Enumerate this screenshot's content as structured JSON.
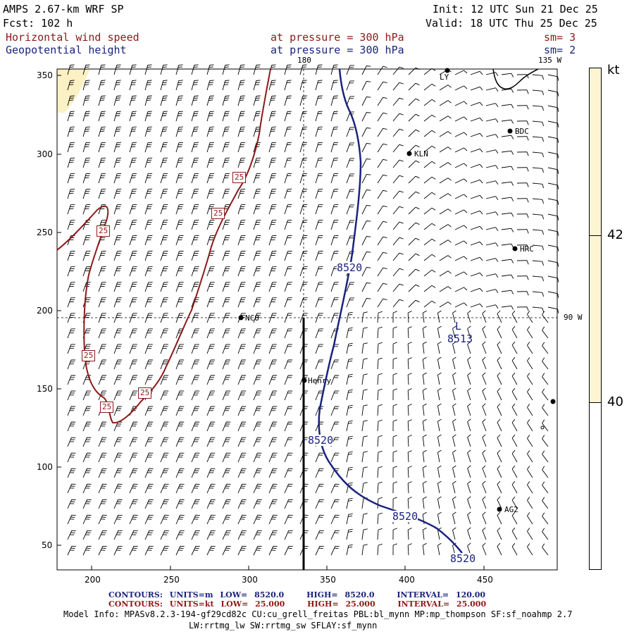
{
  "header": {
    "model": "AMPS 2.67-km WRF SP",
    "fcst": "Fcst:  102 h",
    "init": "Init: 12 UTC Sun 21 Dec 25",
    "valid": "Valid: 18 UTC Thu 25 Dec 25",
    "field1": "Horizontal wind speed",
    "field2": "Geopotential height",
    "pressure1": "at pressure =  300 hPa",
    "pressure2": "at pressure =  300 hPa",
    "sm1": "sm= 3",
    "sm2": "sm= 2"
  },
  "map": {
    "lon_labels": [
      "180",
      "135 W",
      "90 W"
    ],
    "x_ticks": [
      "200",
      "250",
      "300",
      "350",
      "400",
      "450"
    ],
    "y_ticks": [
      "350",
      "300",
      "250",
      "200",
      "150",
      "100",
      "50"
    ],
    "stations": [
      "LY",
      "BDC",
      "KLN",
      "HRC",
      "NCO",
      "Henry",
      "AG2"
    ],
    "height_contour_label": "8520",
    "low_label": "L",
    "low_value": "8513",
    "wind_contour_label": "25",
    "colorbar_unit": "kt",
    "colorbar_labels": [
      "42",
      "40"
    ]
  },
  "colors": {
    "height_contour": "#1a237e",
    "wind_contour": "#8b1a1a",
    "colorbar_fill": "#fdf5d2",
    "wind_fill": "#fbf1c4"
  },
  "footer": {
    "contours_label": "CONTOURS:",
    "blue_units": "UNITS=m",
    "blue_low": "LOW=",
    "blue_low_val": "8520.0",
    "blue_high": "HIGH=",
    "blue_high_val": "8520.0",
    "blue_int": "INTERVAL=",
    "blue_int_val": "120.00",
    "red_units": "UNITS=kt",
    "red_low": "LOW=",
    "red_low_val": "25.000",
    "red_high": "HIGH=",
    "red_high_val": "25.000",
    "red_int": "INTERVAL=",
    "red_int_val": "25.000",
    "model_info": "Model Info: MPASv8.2.3-194-gf29cd82c CU:cu_grell_freitas PBL:bl_mynn MP:mp_thompson SF:sf_noahmp 2.7",
    "model_info2": "LW:rrtmg_lw SW:rrtmg_sw SFLAY:sf_mynn"
  }
}
